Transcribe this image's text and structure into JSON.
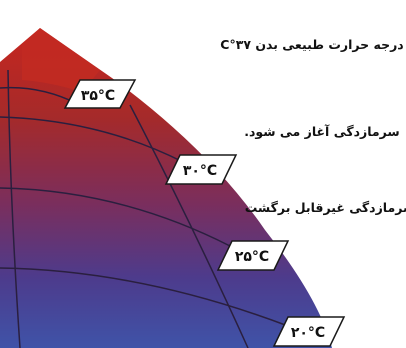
{
  "diagram": {
    "labels": [
      {
        "id": "normal",
        "text": "درجه حرارت طبیعی بدن ۳۷°C"
      },
      {
        "id": "start",
        "text": "سرمازدگی آغاز می شود."
      },
      {
        "id": "irreversible",
        "text": "سرمازدگی غیرقابل برگشت"
      }
    ],
    "temps": [
      {
        "id": "t35",
        "text": "۳۵°C"
      },
      {
        "id": "t30",
        "text": "۳۰°C"
      },
      {
        "id": "t25",
        "text": "۲۵°C"
      },
      {
        "id": "t20",
        "text": "۲۰°C"
      }
    ],
    "colors": {
      "top": "#c7261f",
      "upper": "#a52a2a",
      "middle": "#7a2e5d",
      "lower": "#4d3b8c",
      "bottom": "#3f53a8",
      "grid": "#2a1f3f",
      "tag_border": "#1a1a1a"
    }
  }
}
